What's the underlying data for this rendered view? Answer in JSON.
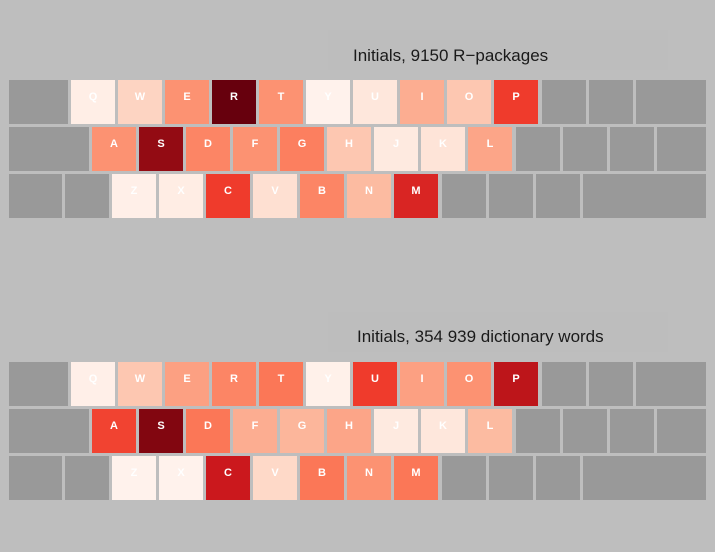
{
  "chart_data": [
    {
      "type": "heatmap",
      "title": "Initials, 9150 R−packages",
      "layout": "qwerty-keyboard",
      "colors": {
        "key_blank": "#999999",
        "scale_low": "#fff5f0",
        "scale_high": "#67000d"
      },
      "rows": [
        {
          "keys": [
            {
              "label": "Q",
              "value": 0.05
            },
            {
              "label": "W",
              "value": 0.2
            },
            {
              "label": "E",
              "value": 0.45
            },
            {
              "label": "R",
              "value": 1.0
            },
            {
              "label": "T",
              "value": 0.45
            },
            {
              "label": "Y",
              "value": 0.02
            },
            {
              "label": "U",
              "value": 0.1
            },
            {
              "label": "I",
              "value": 0.35
            },
            {
              "label": "O",
              "value": 0.25
            },
            {
              "label": "P",
              "value": 0.72
            }
          ]
        },
        {
          "keys": [
            {
              "label": "A",
              "value": 0.45
            },
            {
              "label": "S",
              "value": 0.95
            },
            {
              "label": "D",
              "value": 0.5
            },
            {
              "label": "F",
              "value": 0.45
            },
            {
              "label": "G",
              "value": 0.52
            },
            {
              "label": "H",
              "value": 0.25
            },
            {
              "label": "J",
              "value": 0.08
            },
            {
              "label": "K",
              "value": 0.12
            },
            {
              "label": "L",
              "value": 0.38
            }
          ]
        },
        {
          "keys": [
            {
              "label": "Z",
              "value": 0.04
            },
            {
              "label": "X",
              "value": 0.06
            },
            {
              "label": "C",
              "value": 0.72
            },
            {
              "label": "V",
              "value": 0.15
            },
            {
              "label": "B",
              "value": 0.5
            },
            {
              "label": "N",
              "value": 0.3
            },
            {
              "label": "M",
              "value": 0.8
            }
          ]
        }
      ]
    },
    {
      "type": "heatmap",
      "title": "Initials, 354 939 dictionary words",
      "layout": "qwerty-keyboard",
      "colors": {
        "key_blank": "#999999",
        "scale_low": "#fff5f0",
        "scale_high": "#67000d"
      },
      "rows": [
        {
          "keys": [
            {
              "label": "Q",
              "value": 0.04
            },
            {
              "label": "W",
              "value": 0.25
            },
            {
              "label": "E",
              "value": 0.4
            },
            {
              "label": "R",
              "value": 0.5
            },
            {
              "label": "T",
              "value": 0.55
            },
            {
              "label": "Y",
              "value": 0.03
            },
            {
              "label": "U",
              "value": 0.72
            },
            {
              "label": "I",
              "value": 0.4
            },
            {
              "label": "O",
              "value": 0.45
            },
            {
              "label": "P",
              "value": 0.88
            }
          ]
        },
        {
          "keys": [
            {
              "label": "A",
              "value": 0.7
            },
            {
              "label": "S",
              "value": 0.97
            },
            {
              "label": "D",
              "value": 0.55
            },
            {
              "label": "F",
              "value": 0.35
            },
            {
              "label": "G",
              "value": 0.32
            },
            {
              "label": "H",
              "value": 0.38
            },
            {
              "label": "J",
              "value": 0.08
            },
            {
              "label": "K",
              "value": 0.1
            },
            {
              "label": "L",
              "value": 0.3
            }
          ]
        },
        {
          "keys": [
            {
              "label": "Z",
              "value": 0.02
            },
            {
              "label": "X",
              "value": 0.02
            },
            {
              "label": "C",
              "value": 0.85
            },
            {
              "label": "V",
              "value": 0.18
            },
            {
              "label": "B",
              "value": 0.55
            },
            {
              "label": "N",
              "value": 0.45
            },
            {
              "label": "M",
              "value": 0.55
            }
          ]
        }
      ]
    }
  ]
}
